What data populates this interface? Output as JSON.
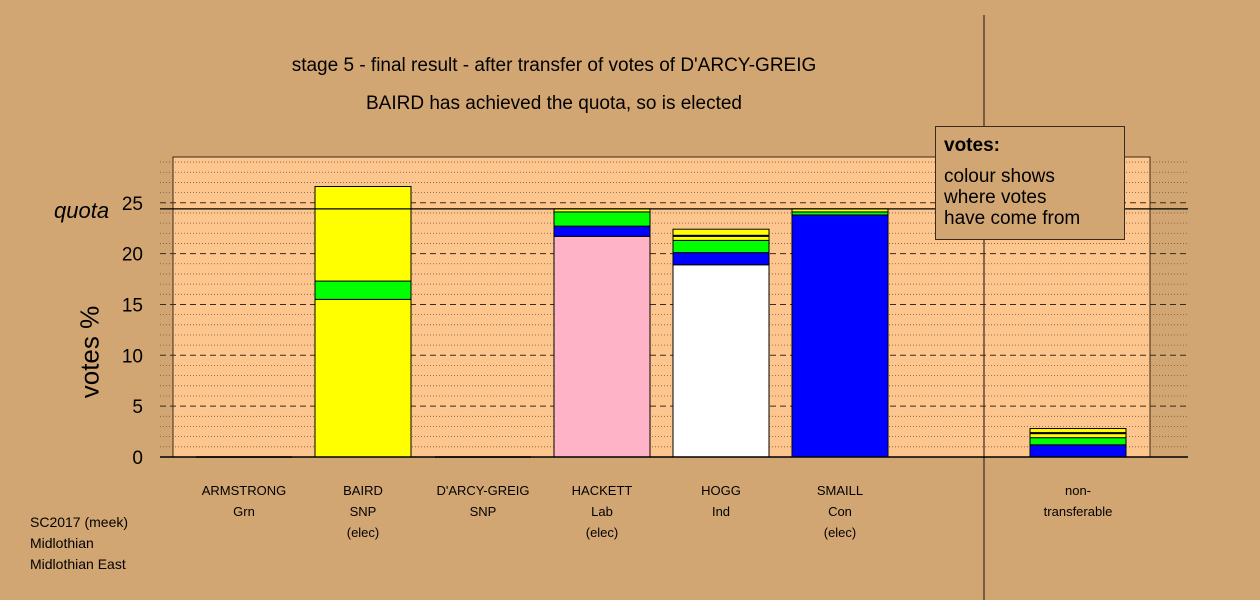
{
  "title": "stage 5 - final result - after transfer of votes of D'ARCY-GREIG",
  "subtitle": "BAIRD has achieved the quota, so is elected",
  "quota_label": "quota",
  "footer": [
    "SC2017 (meek)",
    "Midlothian",
    "Midlothian East"
  ],
  "legend": {
    "title": "votes:",
    "lines": [
      "colour shows",
      "where votes",
      "have come from"
    ]
  },
  "colors": {
    "background": "#d2a673",
    "plot_area": "#fdc68e",
    "SNP": "#ffff00",
    "Grn": "#00ff00",
    "Lab": "#ffb3c6",
    "Ind": "#ffffff",
    "Con": "#0000ff"
  },
  "chart_data": {
    "type": "bar",
    "stacked": true,
    "ylabel": "votes %",
    "ylim": [
      0,
      29.5
    ],
    "yticks": [
      0,
      5,
      10,
      15,
      20,
      25
    ],
    "quota": 24.4,
    "grid": true,
    "categories": [
      {
        "name": "ARMSTRONG",
        "party": "Grn",
        "status": ""
      },
      {
        "name": "BAIRD",
        "party": "SNP",
        "status": "(elec)"
      },
      {
        "name": "D'ARCY-GREIG",
        "party": "SNP",
        "status": ""
      },
      {
        "name": "HACKETT",
        "party": "Lab",
        "status": "(elec)"
      },
      {
        "name": "HOGG",
        "party": "Ind",
        "status": ""
      },
      {
        "name": "SMAILL",
        "party": "Con",
        "status": "(elec)"
      },
      {
        "name": "non-",
        "party": "transferable",
        "status": ""
      }
    ],
    "bars": [
      [],
      [
        {
          "source": "SNP",
          "value": 15.5
        },
        {
          "source": "Grn",
          "value": 1.8
        },
        {
          "source": "SNP",
          "value": 9.3
        }
      ],
      [],
      [
        {
          "source": "Lab",
          "value": 21.7
        },
        {
          "source": "Con",
          "value": 1.0
        },
        {
          "source": "Grn",
          "value": 1.4
        },
        {
          "source": "SNP",
          "value": 0.3
        }
      ],
      [
        {
          "source": "Ind",
          "value": 18.9
        },
        {
          "source": "Con",
          "value": 1.2
        },
        {
          "source": "Grn",
          "value": 1.2
        },
        {
          "source": "SNP",
          "value": 0.4
        },
        {
          "source": "Lab",
          "value": 0.1
        },
        {
          "source": "SNP",
          "value": 0.6
        }
      ],
      [
        {
          "source": "Con",
          "value": 23.8
        },
        {
          "source": "Grn",
          "value": 0.3
        },
        {
          "source": "SNP",
          "value": 0.3
        }
      ],
      [
        {
          "source": "Con",
          "value": 1.2
        },
        {
          "source": "Grn",
          "value": 0.7
        },
        {
          "source": "SNP",
          "value": 0.4
        },
        {
          "source": "Lab",
          "value": 0.1
        },
        {
          "source": "SNP",
          "value": 0.4
        }
      ]
    ]
  }
}
